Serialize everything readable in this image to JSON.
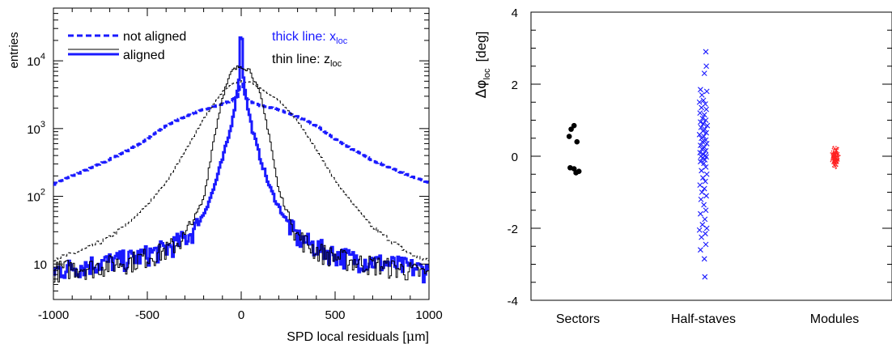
{
  "chart_data": [
    {
      "type": "line",
      "ylabel": "entries",
      "xlabel_text": "SPD local residuals [",
      "xlabel_unit": "μ",
      "xlabel_tail": "m]",
      "x_ticks": [
        "-1000",
        "-500",
        "0",
        "500",
        "1000"
      ],
      "y_ticks": [
        {
          "base": "10",
          "exp": "4"
        },
        {
          "base": "10",
          "exp": "3"
        },
        {
          "base": "10",
          "exp": "2"
        },
        {
          "base": "10",
          "exp": ""
        }
      ],
      "xlim": [
        -1000,
        1000
      ],
      "ylim": [
        3,
        60000
      ],
      "log_y": true,
      "legend": {
        "placement": "top-left",
        "not_aligned": "not aligned",
        "aligned": "aligned",
        "thick_prefix": "thick line: x",
        "thick_sub": "loc",
        "thin_prefix": "thin line: z",
        "thin_sub": "loc"
      },
      "colors": {
        "x": "#1a1aff",
        "z": "#000000"
      },
      "series": [
        {
          "name": "x not aligned",
          "style": "thick-dashed",
          "color": "#1a1aff",
          "x": [
            -1000,
            -900,
            -800,
            -700,
            -600,
            -500,
            -400,
            -300,
            -200,
            -100,
            -50,
            -20,
            0,
            20,
            50,
            100,
            200,
            300,
            400,
            500,
            600,
            700,
            800,
            900,
            1000
          ],
          "y": [
            150,
            200,
            260,
            350,
            480,
            700,
            1100,
            1500,
            1900,
            2300,
            2600,
            3000,
            5000,
            2900,
            2500,
            2200,
            1900,
            1500,
            1100,
            700,
            480,
            340,
            260,
            200,
            160
          ]
        },
        {
          "name": "z not aligned",
          "style": "thin-dashed",
          "color": "#000000",
          "x": [
            -1000,
            -900,
            -800,
            -700,
            -600,
            -500,
            -400,
            -300,
            -200,
            -100,
            -50,
            0,
            50,
            100,
            200,
            300,
            400,
            500,
            600,
            700,
            800,
            900,
            1000
          ],
          "y": [
            12,
            14,
            18,
            25,
            40,
            75,
            160,
            450,
            1400,
            3500,
            4500,
            5000,
            4800,
            4000,
            2600,
            1300,
            500,
            170,
            75,
            35,
            22,
            14,
            11
          ]
        },
        {
          "name": "x aligned",
          "style": "thick-solid",
          "color": "#1a1aff",
          "x": [
            -1000,
            -900,
            -800,
            -700,
            -600,
            -500,
            -400,
            -300,
            -250,
            -200,
            -150,
            -100,
            -60,
            -30,
            -10,
            0,
            10,
            30,
            60,
            100,
            150,
            200,
            250,
            300,
            400,
            500,
            600,
            700,
            800,
            900,
            1000
          ],
          "y": [
            8,
            9,
            10,
            11,
            12,
            14,
            17,
            24,
            32,
            55,
            120,
            350,
            900,
            2500,
            6000,
            50000,
            6500,
            2400,
            950,
            380,
            140,
            70,
            40,
            25,
            18,
            14,
            12,
            11,
            10,
            9,
            8
          ]
        },
        {
          "name": "z aligned",
          "style": "thin-solid",
          "color": "#000000",
          "x": [
            -1000,
            -900,
            -800,
            -700,
            -600,
            -500,
            -400,
            -300,
            -200,
            -150,
            -100,
            -50,
            0,
            50,
            100,
            150,
            200,
            300,
            400,
            500,
            600,
            700,
            800,
            900,
            1000
          ],
          "y": [
            8,
            9,
            9,
            10,
            11,
            13,
            16,
            25,
            90,
            600,
            3000,
            7000,
            8500,
            7200,
            3200,
            800,
            120,
            26,
            16,
            13,
            11,
            10,
            9,
            8,
            7
          ]
        }
      ]
    },
    {
      "type": "scatter",
      "ylabel_text": "Δφ",
      "ylabel_sub": "loc",
      "ylabel_unit": "[deg]",
      "categories": [
        "Sectors",
        "Half-staves",
        "Modules"
      ],
      "y_ticks": [
        "4",
        "2",
        "0",
        "-2",
        "-4"
      ],
      "ylim": [
        -4,
        4
      ],
      "colors": {
        "Sectors": "#000000",
        "Half-staves": "#1a1aff",
        "Modules": "#ff2020"
      },
      "series": [
        {
          "name": "Sectors",
          "marker": "dot",
          "color": "#000000",
          "points": [
            [
              -0.08,
              0.85
            ],
            [
              -0.14,
              0.75
            ],
            [
              -0.18,
              0.55
            ],
            [
              -0.02,
              0.4
            ],
            [
              -0.16,
              -0.32
            ],
            [
              -0.08,
              -0.35
            ],
            [
              0.02,
              -0.42
            ],
            [
              -0.04,
              -0.46
            ]
          ]
        },
        {
          "name": "Half-staves",
          "marker": "cross",
          "color": "#1a1aff",
          "points": [
            [
              0.05,
              2.9
            ],
            [
              0.06,
              2.5
            ],
            [
              0.02,
              2.3
            ],
            [
              -0.06,
              1.85
            ],
            [
              0.07,
              1.8
            ],
            [
              -0.03,
              1.7
            ],
            [
              0.0,
              1.55
            ],
            [
              -0.08,
              1.5
            ],
            [
              0.04,
              1.45
            ],
            [
              -0.04,
              1.35
            ],
            [
              0.06,
              1.3
            ],
            [
              -0.07,
              1.2
            ],
            [
              0.02,
              1.15
            ],
            [
              -0.02,
              1.05
            ],
            [
              0.05,
              1.0
            ],
            [
              -0.06,
              0.95
            ],
            [
              0.0,
              0.9
            ],
            [
              0.08,
              0.85
            ],
            [
              -0.05,
              0.8
            ],
            [
              0.03,
              0.75
            ],
            [
              -0.01,
              0.7
            ],
            [
              0.06,
              0.65
            ],
            [
              -0.08,
              0.6
            ],
            [
              0.01,
              0.55
            ],
            [
              -0.04,
              0.5
            ],
            [
              0.05,
              0.45
            ],
            [
              -0.02,
              0.4
            ],
            [
              0.07,
              0.35
            ],
            [
              -0.06,
              0.3
            ],
            [
              0.02,
              0.25
            ],
            [
              -0.03,
              0.2
            ],
            [
              0.05,
              0.15
            ],
            [
              -0.07,
              0.1
            ],
            [
              0.0,
              0.05
            ],
            [
              0.04,
              0.02
            ],
            [
              -0.05,
              0.0
            ],
            [
              0.06,
              -0.02
            ],
            [
              -0.02,
              -0.05
            ],
            [
              0.03,
              -0.1
            ],
            [
              -0.06,
              -0.15
            ],
            [
              0.01,
              -0.2
            ],
            [
              0.05,
              -0.3
            ],
            [
              -0.04,
              -0.4
            ],
            [
              0.07,
              -0.5
            ],
            [
              -0.01,
              -0.6
            ],
            [
              0.04,
              -0.7
            ],
            [
              -0.07,
              -0.8
            ],
            [
              0.02,
              -0.9
            ],
            [
              -0.03,
              -1.0
            ],
            [
              0.06,
              -1.1
            ],
            [
              -0.05,
              -1.2
            ],
            [
              0.01,
              -1.35
            ],
            [
              0.05,
              -1.5
            ],
            [
              -0.06,
              -1.6
            ],
            [
              0.03,
              -1.75
            ],
            [
              -0.02,
              -1.9
            ],
            [
              0.07,
              -2.0
            ],
            [
              -0.08,
              -2.05
            ],
            [
              0.04,
              -2.15
            ],
            [
              -0.04,
              -2.25
            ],
            [
              0.05,
              -2.45
            ],
            [
              -0.06,
              -2.6
            ],
            [
              0.02,
              -2.85
            ],
            [
              0.03,
              -3.35
            ]
          ]
        },
        {
          "name": "Modules",
          "marker": "small-dot",
          "color": "#ff2020",
          "spread_x": 0.06,
          "spread_y": 0.28,
          "count": 300
        }
      ]
    }
  ]
}
